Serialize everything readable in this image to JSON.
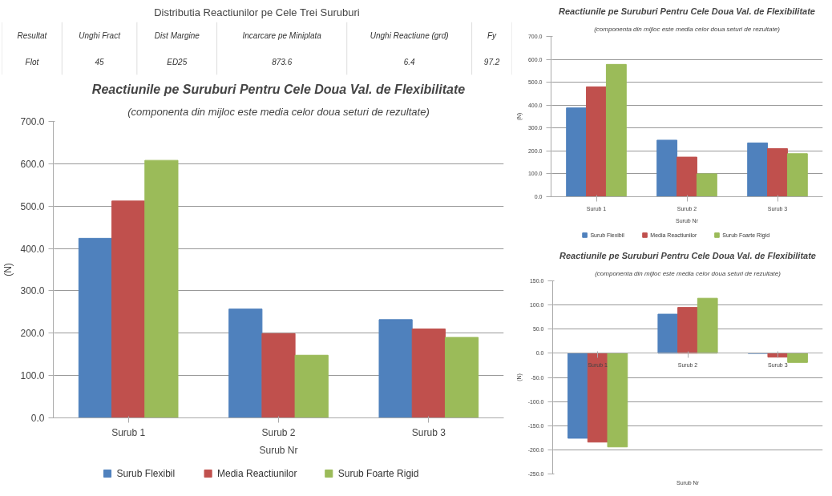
{
  "chart_data": [
    {
      "type": "other",
      "title": "Distributia Reactiunilor pe Cele Trei Suruburi",
      "annotations": [
        "Resultat",
        "Unghi Fract",
        "Dist Margine",
        "Incarcare pe Miniplata",
        "Unghi Reactiune (grd)",
        "Fy",
        "Flot",
        "45",
        "ED25",
        "873.6",
        "6.4",
        "97.2"
      ]
    },
    {
      "type": "bar",
      "title": "Reactiunile pe Suruburi Pentru Cele Doua Val. de Flexibilitate",
      "subtitle": "(componenta din mijloc este media celor doua seturi de rezultate)",
      "xlabel": "Surub Nr",
      "ylabel": "(N)",
      "categories": [
        "Surub 1",
        "Surub 2",
        "Surub 3"
      ],
      "series": [
        {
          "name": "Surub Flexibil",
          "color": "#4f81bd",
          "values": [
            424,
            257,
            232
          ]
        },
        {
          "name": "Media Reactiunilor",
          "color": "#c0504d",
          "values": [
            512,
            199,
            210
          ]
        },
        {
          "name": "Surub Foarte Rigid",
          "color": "#9bbb59",
          "values": [
            608,
            148,
            190
          ]
        }
      ],
      "ylim": [
        0,
        700
      ],
      "yticks": [
        {
          "value": 0,
          "label": "0.0"
        },
        {
          "value": 100,
          "label": "100.0"
        },
        {
          "value": 200,
          "label": "200.0"
        },
        {
          "value": 300,
          "label": "300.0"
        },
        {
          "value": 400,
          "label": "400.0"
        },
        {
          "value": 500,
          "label": "500.0"
        },
        {
          "value": 600,
          "label": "600.0"
        },
        {
          "value": 700,
          "label": "700.0"
        }
      ],
      "grid": "y",
      "legend": "bottom"
    },
    {
      "type": "bar",
      "title": "Reactiunile pe Suruburi Pentru Cele Doua Val. de Flexibilitate",
      "subtitle": "(componenta din mijloc este media celor doua seturi de rezultate)",
      "xlabel": "Surub Nr",
      "ylabel": "(N)",
      "categories": [
        "Surub 1",
        "Surub 2",
        "Surub 3"
      ],
      "series": [
        {
          "name": "Surub Flexibil",
          "color": "#4f81bd",
          "values": [
            388,
            247,
            235
          ]
        },
        {
          "name": "Media Reactiunilor",
          "color": "#c0504d",
          "values": [
            480,
            173,
            210
          ]
        },
        {
          "name": "Surub Foarte Rigid",
          "color": "#9bbb59",
          "values": [
            578,
            100,
            188
          ]
        }
      ],
      "ylim": [
        0,
        700
      ],
      "yticks": [
        {
          "value": 0,
          "label": "0.0"
        },
        {
          "value": 100,
          "label": "100.0"
        },
        {
          "value": 200,
          "label": "200.0"
        },
        {
          "value": 300,
          "label": "300.0"
        },
        {
          "value": 400,
          "label": "400.0"
        },
        {
          "value": 500,
          "label": "500.0"
        },
        {
          "value": 600,
          "label": "600.0"
        },
        {
          "value": 700,
          "label": "700.0"
        }
      ],
      "grid": "y",
      "legend": "bottom"
    },
    {
      "type": "bar",
      "title": "Reactiunile pe Suruburi Pentru Cele Doua Val. de Flexibilitate",
      "subtitle": "(componenta din mijloc este media celor doua seturi de rezultate)",
      "xlabel": "Surub Nr",
      "ylabel": "(N)",
      "categories": [
        "Surub 1",
        "Surub 2",
        "Surub 3"
      ],
      "series": [
        {
          "color": "#4f81bd",
          "values": [
            -176,
            81,
            0
          ]
        },
        {
          "color": "#c0504d",
          "values": [
            -184,
            95,
            -8
          ]
        },
        {
          "color": "#9bbb59",
          "values": [
            -194,
            114,
            -19
          ]
        }
      ],
      "ylim": [
        -250,
        150
      ],
      "yticks": [
        {
          "value": -250,
          "label": "-250.0"
        },
        {
          "value": -200,
          "label": "-200.0"
        },
        {
          "value": -150,
          "label": "-150.0"
        },
        {
          "value": -100,
          "label": "-100.0"
        },
        {
          "value": -50,
          "label": "-50.0"
        },
        {
          "value": 0,
          "label": "0.0"
        },
        {
          "value": 50,
          "label": "50.0"
        },
        {
          "value": 100,
          "label": "100.0"
        },
        {
          "value": 150,
          "label": "150.0"
        }
      ],
      "grid": "y"
    }
  ]
}
